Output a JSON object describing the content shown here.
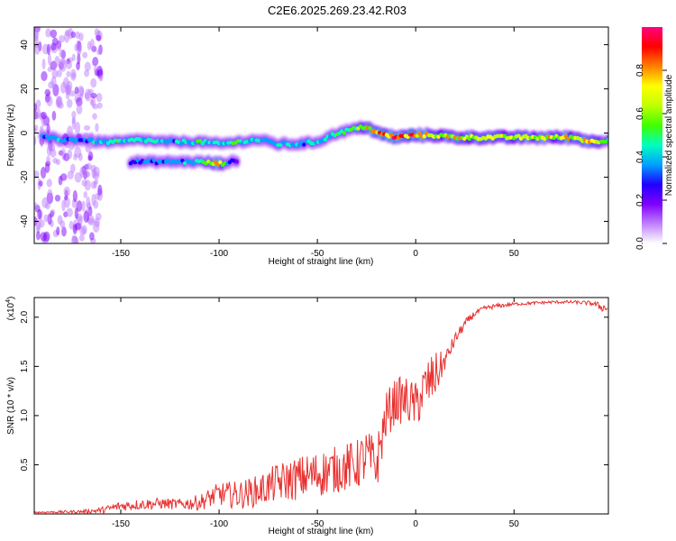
{
  "figure": {
    "title": "C2E6.2025.269.23.42.R03"
  },
  "chart_data": [
    {
      "type": "heatmap",
      "xlabel": "Height of straight line (km)",
      "ylabel": "Frequency (Hz)",
      "xlim": [
        -194,
        98
      ],
      "ylim": [
        -50,
        48
      ],
      "xticks": [
        -150,
        -100,
        -50,
        0,
        50
      ],
      "yticks": [
        -40,
        -20,
        0,
        20,
        40
      ],
      "colorbar": {
        "label": "Normalized spectral amplitude",
        "range": [
          0.0,
          1.0
        ],
        "ticks": [
          "0.0",
          "0.2",
          "0.4",
          "0.6",
          "0.8"
        ],
        "colormap": [
          "#ffffff",
          "#c080ff",
          "#8000ff",
          "#2000ff",
          "#00a0ff",
          "#00ffc0",
          "#40ff00",
          "#c0ff00",
          "#ffff00",
          "#ff8000",
          "#ff0000",
          "#ff0080"
        ]
      },
      "main_track": {
        "description": "dominant frequency ridge vs height (Hz)",
        "x": [
          -190,
          -180,
          -170,
          -160,
          -150,
          -140,
          -130,
          -120,
          -110,
          -100,
          -90,
          -80,
          -70,
          -60,
          -50,
          -40,
          -30,
          -25,
          -20,
          -10,
          0,
          10,
          20,
          40,
          60,
          80,
          90,
          98
        ],
        "y": [
          -2,
          -3,
          -3,
          -4,
          -4,
          -3,
          -4,
          -4,
          -4,
          -5,
          -4,
          -3,
          -5,
          -5,
          -4,
          0,
          2,
          3,
          0,
          -2,
          -1,
          -1,
          -2,
          -2,
          -2,
          -2,
          -4,
          -3
        ],
        "amplitude": [
          0.35,
          0.4,
          0.35,
          0.45,
          0.55,
          0.45,
          0.45,
          0.4,
          0.5,
          0.45,
          0.5,
          0.45,
          0.45,
          0.4,
          0.45,
          0.5,
          0.6,
          0.75,
          0.8,
          0.95,
          0.85,
          0.7,
          0.75,
          0.7,
          0.7,
          0.75,
          0.8,
          0.5
        ]
      },
      "secondary_track": {
        "description": "weaker lower branch (Hz)",
        "x": [
          -145,
          -130,
          -120,
          -110,
          -100,
          -95,
          -90
        ],
        "y": [
          -13,
          -13,
          -13,
          -13,
          -14,
          -13,
          -13
        ],
        "amplitude": [
          0.3,
          0.35,
          0.4,
          0.45,
          0.8,
          0.3,
          0.25
        ]
      }
    },
    {
      "type": "line",
      "xlabel": "Height of straight line (km)",
      "ylabel": "SNR (10 * v/v)",
      "y_multiplier": "(x10^4)",
      "y_multiplier_base": "(x10",
      "y_multiplier_exp": "4",
      "xlim": [
        -194,
        98
      ],
      "ylim": [
        0,
        2.2
      ],
      "xticks": [
        -150,
        -100,
        -50,
        0,
        50
      ],
      "yticks": [
        0.5,
        1.0,
        1.5,
        2.0
      ],
      "ytick_labels": [
        "0.5",
        "1.0",
        "1.5",
        "2.0"
      ],
      "series": [
        {
          "name": "SNR",
          "color": "#e8302f",
          "x": [
            -194,
            -170,
            -160,
            -150,
            -140,
            -130,
            -120,
            -110,
            -100,
            -90,
            -80,
            -70,
            -60,
            -50,
            -40,
            -30,
            -25,
            -20,
            -15,
            -10,
            -5,
            0,
            5,
            10,
            15,
            20,
            25,
            30,
            35,
            40,
            50,
            60,
            70,
            80,
            90,
            95,
            98
          ],
          "y": [
            0.02,
            0.03,
            0.05,
            0.1,
            0.12,
            0.13,
            0.12,
            0.15,
            0.25,
            0.25,
            0.3,
            0.4,
            0.45,
            0.5,
            0.55,
            0.6,
            0.7,
            0.6,
            1.1,
            1.25,
            1.25,
            1.2,
            1.4,
            1.5,
            1.6,
            1.8,
            1.95,
            2.05,
            2.1,
            2.12,
            2.14,
            2.15,
            2.16,
            2.16,
            2.15,
            2.12,
            2.1
          ],
          "noise_envelope": [
            0.01,
            0.02,
            0.04,
            0.06,
            0.07,
            0.07,
            0.07,
            0.1,
            0.15,
            0.18,
            0.2,
            0.25,
            0.28,
            0.3,
            0.3,
            0.32,
            0.35,
            0.35,
            0.3,
            0.3,
            0.3,
            0.3,
            0.35,
            0.3,
            0.12,
            0.08,
            0.06,
            0.04,
            0.03,
            0.03,
            0.02,
            0.02,
            0.02,
            0.02,
            0.03,
            0.06,
            0.04
          ]
        }
      ]
    }
  ]
}
